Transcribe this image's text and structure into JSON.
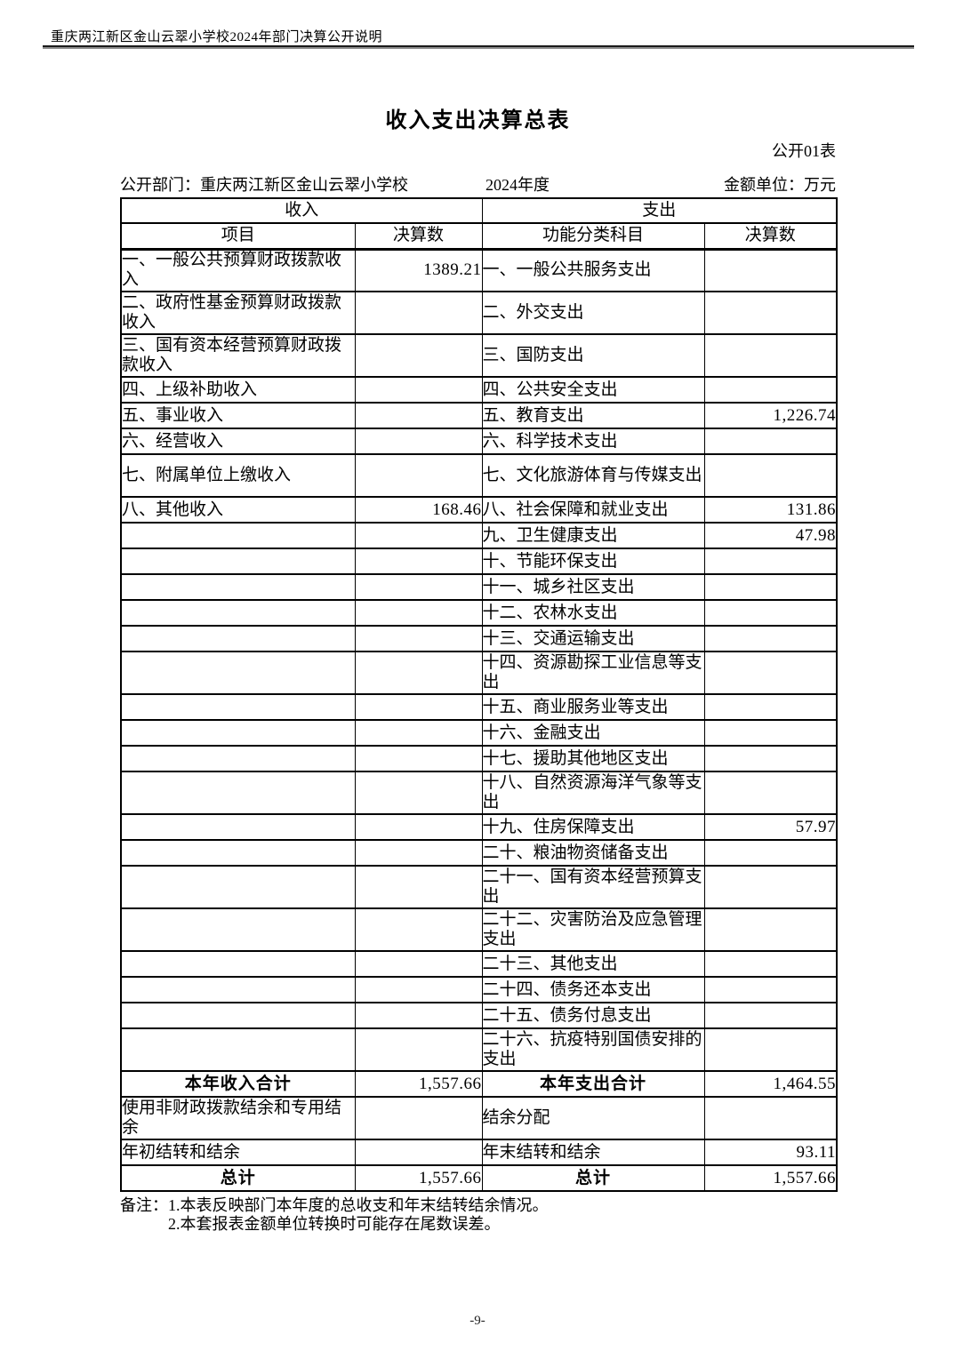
{
  "page": {
    "header_text": "重庆两江新区金山云翠小学校2024年部门决算公开说明",
    "title": "收入支出决算总表",
    "table_code": "公开01表",
    "department": "公开部门：重庆两江新区金山云翠小学校",
    "year": "2024年度",
    "unit": "金额单位：万元",
    "notes": {
      "note1": "备注：1.本表反映部门本年度的总收支和年末结转结余情况。",
      "note2": "2.本套报表金额单位转换时可能存在尾数误差。"
    },
    "page_number": "-9-"
  },
  "table": {
    "section_headers": {
      "income": "收入",
      "expense": "支出"
    },
    "column_headers": {
      "income_item": "项目",
      "income_value": "决算数",
      "expense_item": "功能分类科目",
      "expense_value": "决算数"
    },
    "rows": [
      {
        "income": "一、一般公共预算财政拨款收入",
        "income_val": "1389.21",
        "expense": "一、一般公共服务支出",
        "expense_val": "",
        "tall": true,
        "total": false
      },
      {
        "income": "二、政府性基金预算财政拨款收入",
        "income_val": "",
        "expense": "二、外交支出",
        "expense_val": "",
        "tall": true,
        "total": false
      },
      {
        "income": "三、国有资本经营预算财政拨款收入",
        "income_val": "",
        "expense": "三、国防支出",
        "expense_val": "",
        "tall": true,
        "total": false
      },
      {
        "income": "四、上级补助收入",
        "income_val": "",
        "expense": "四、公共安全支出",
        "expense_val": "",
        "tall": false,
        "total": false
      },
      {
        "income": "五、事业收入",
        "income_val": "",
        "expense": "五、教育支出",
        "expense_val": "1,226.74",
        "tall": false,
        "total": false
      },
      {
        "income": "六、经营收入",
        "income_val": "",
        "expense": "六、科学技术支出",
        "expense_val": "",
        "tall": false,
        "total": false
      },
      {
        "income": "七、附属单位上缴收入",
        "income_val": "",
        "expense": "七、文化旅游体育与传媒支出",
        "expense_val": "",
        "tall": true,
        "total": false
      },
      {
        "income": "八、其他收入",
        "income_val": "168.46",
        "expense": "八、社会保障和就业支出",
        "expense_val": "131.86",
        "tall": false,
        "total": false
      },
      {
        "income": "",
        "income_val": "",
        "expense": "九、卫生健康支出",
        "expense_val": "47.98",
        "tall": false,
        "total": false
      },
      {
        "income": "",
        "income_val": "",
        "expense": "十、节能环保支出",
        "expense_val": "",
        "tall": false,
        "total": false
      },
      {
        "income": "",
        "income_val": "",
        "expense": "十一、城乡社区支出",
        "expense_val": "",
        "tall": false,
        "total": false
      },
      {
        "income": "",
        "income_val": "",
        "expense": "十二、农林水支出",
        "expense_val": "",
        "tall": false,
        "total": false
      },
      {
        "income": "",
        "income_val": "",
        "expense": "十三、交通运输支出",
        "expense_val": "",
        "tall": false,
        "total": false
      },
      {
        "income": "",
        "income_val": "",
        "expense": "十四、资源勘探工业信息等支出",
        "expense_val": "",
        "tall": true,
        "total": false
      },
      {
        "income": "",
        "income_val": "",
        "expense": "十五、商业服务业等支出",
        "expense_val": "",
        "tall": false,
        "total": false
      },
      {
        "income": "",
        "income_val": "",
        "expense": "十六、金融支出",
        "expense_val": "",
        "tall": false,
        "total": false
      },
      {
        "income": "",
        "income_val": "",
        "expense": "十七、援助其他地区支出",
        "expense_val": "",
        "tall": false,
        "total": false
      },
      {
        "income": "",
        "income_val": "",
        "expense": "十八、自然资源海洋气象等支出",
        "expense_val": "",
        "tall": true,
        "total": false
      },
      {
        "income": "",
        "income_val": "",
        "expense": "十九、住房保障支出",
        "expense_val": "57.97",
        "tall": false,
        "total": false
      },
      {
        "income": "",
        "income_val": "",
        "expense": "二十、粮油物资储备支出",
        "expense_val": "",
        "tall": false,
        "total": false
      },
      {
        "income": "",
        "income_val": "",
        "expense": "二十一、国有资本经营预算支出",
        "expense_val": "",
        "tall": true,
        "total": false
      },
      {
        "income": "",
        "income_val": "",
        "expense": "二十二、灾害防治及应急管理支出",
        "expense_val": "",
        "tall": true,
        "total": false
      },
      {
        "income": "",
        "income_val": "",
        "expense": "二十三、其他支出",
        "expense_val": "",
        "tall": false,
        "total": false
      },
      {
        "income": "",
        "income_val": "",
        "expense": "二十四、债务还本支出",
        "expense_val": "",
        "tall": false,
        "total": false
      },
      {
        "income": "",
        "income_val": "",
        "expense": "二十五、债务付息支出",
        "expense_val": "",
        "tall": false,
        "total": false
      },
      {
        "income": "",
        "income_val": "",
        "expense": "二十六、抗疫特别国债安排的支出",
        "expense_val": "",
        "tall": true,
        "total": false
      },
      {
        "income": "本年收入合计",
        "income_val": "1,557.66",
        "expense": "本年支出合计",
        "expense_val": "1,464.55",
        "tall": false,
        "total": true
      },
      {
        "income": "使用非财政拨款结余和专用结余",
        "income_val": "",
        "expense": "结余分配",
        "expense_val": "",
        "tall": true,
        "total": false
      },
      {
        "income": "年初结转和结余",
        "income_val": "",
        "expense": "年末结转和结余",
        "expense_val": "93.11",
        "tall": false,
        "total": false
      },
      {
        "income": "总计",
        "income_val": "1,557.66",
        "expense": "总计",
        "expense_val": "1,557.66",
        "tall": false,
        "total": true
      }
    ]
  }
}
